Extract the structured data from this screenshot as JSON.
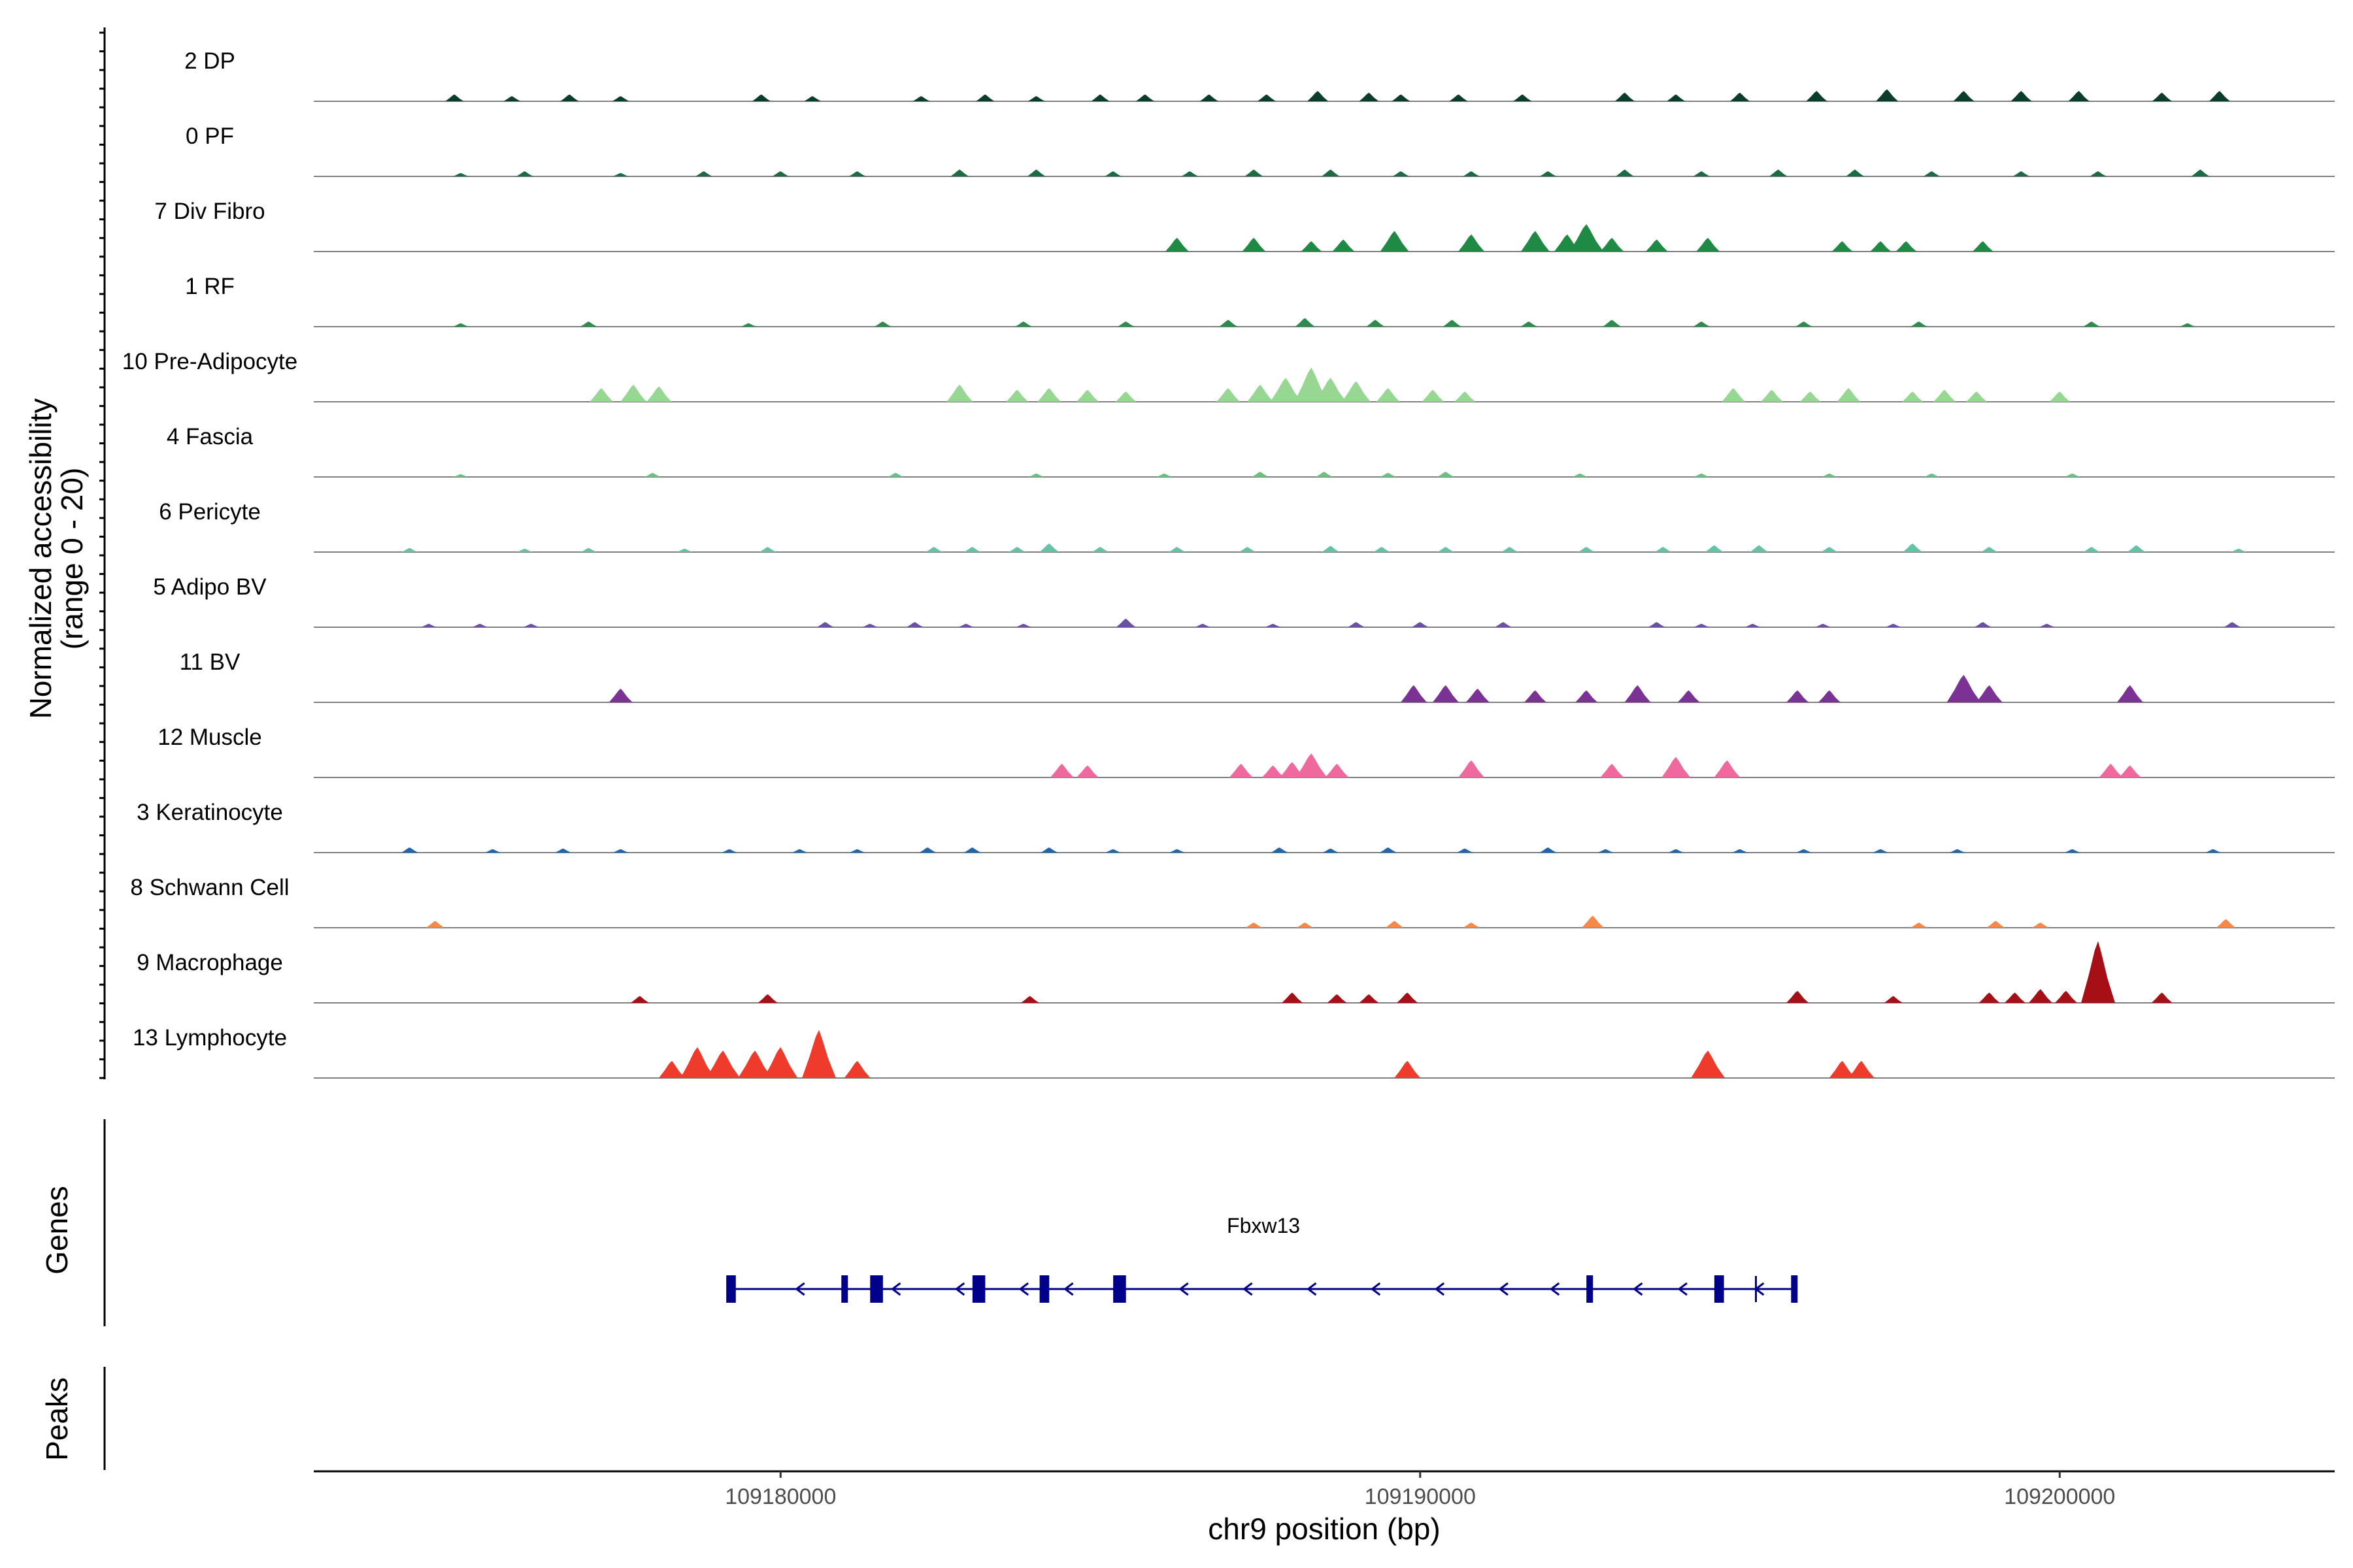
{
  "chart_data": {
    "type": "area",
    "title": "",
    "ylabel": "Normalized accessibility",
    "ylabel_range": "(range 0 - 20)",
    "xlabel": "chr9 position (bp)",
    "xlim": [
      109172700,
      109204300
    ],
    "ylim": [
      0,
      20
    ],
    "x_ticks": [
      {
        "value": 109180000,
        "label": "109180000"
      },
      {
        "value": 109190000,
        "label": "109190000"
      },
      {
        "value": 109200000,
        "label": "109200000"
      }
    ],
    "tracks": [
      {
        "name": "2 DP",
        "color": "#0b3d2a",
        "peaks": [
          [
            109174900,
            2
          ],
          [
            109175800,
            1.5
          ],
          [
            109176700,
            2
          ],
          [
            109177500,
            1.5
          ],
          [
            109179700,
            2
          ],
          [
            109180500,
            1.5
          ],
          [
            109182200,
            1.5
          ],
          [
            109183200,
            2
          ],
          [
            109184000,
            1.5
          ],
          [
            109185000,
            2
          ],
          [
            109185700,
            2
          ],
          [
            109186700,
            2
          ],
          [
            109187600,
            2
          ],
          [
            109188400,
            3
          ],
          [
            109189200,
            2.5
          ],
          [
            109189700,
            2
          ],
          [
            109190600,
            2
          ],
          [
            109191600,
            2
          ],
          [
            109193200,
            2.5
          ],
          [
            109194000,
            2
          ],
          [
            109195000,
            2.5
          ],
          [
            109196200,
            3
          ],
          [
            109197300,
            3.5
          ],
          [
            109198500,
            3
          ],
          [
            109199400,
            3
          ],
          [
            109200300,
            3
          ],
          [
            109201600,
            2.5
          ],
          [
            109202500,
            3
          ]
        ]
      },
      {
        "name": "0 PF",
        "color": "#1d6a45",
        "peaks": [
          [
            109175000,
            1
          ],
          [
            109176000,
            1.5
          ],
          [
            109177500,
            1
          ],
          [
            109178800,
            1.5
          ],
          [
            109180000,
            1.5
          ],
          [
            109181200,
            1.5
          ],
          [
            109182800,
            2
          ],
          [
            109184000,
            2
          ],
          [
            109185200,
            1.5
          ],
          [
            109186400,
            1.5
          ],
          [
            109187400,
            2
          ],
          [
            109188600,
            2
          ],
          [
            109189700,
            1.5
          ],
          [
            109190800,
            1.5
          ],
          [
            109192000,
            1.5
          ],
          [
            109193200,
            2
          ],
          [
            109194400,
            1.5
          ],
          [
            109195600,
            2
          ],
          [
            109196800,
            2
          ],
          [
            109198000,
            1.5
          ],
          [
            109199400,
            1.5
          ],
          [
            109200600,
            1.5
          ],
          [
            109202200,
            2
          ]
        ]
      },
      {
        "name": "7 Div Fibro",
        "color": "#1f8a43",
        "peaks": [
          [
            109186200,
            4
          ],
          [
            109187400,
            4
          ],
          [
            109188300,
            3
          ],
          [
            109188800,
            3.5
          ],
          [
            109189600,
            6
          ],
          [
            109190800,
            5
          ],
          [
            109191800,
            6
          ],
          [
            109192300,
            5
          ],
          [
            109192600,
            8
          ],
          [
            109193000,
            4
          ],
          [
            109193700,
            3.5
          ],
          [
            109194500,
            4
          ],
          [
            109196600,
            3
          ],
          [
            109197200,
            3
          ],
          [
            109197600,
            3
          ],
          [
            109198800,
            3
          ]
        ]
      },
      {
        "name": "1 RF",
        "color": "#2e8b4e",
        "peaks": [
          [
            109175000,
            1
          ],
          [
            109177000,
            1.5
          ],
          [
            109179500,
            1
          ],
          [
            109181600,
            1.5
          ],
          [
            109183800,
            1.5
          ],
          [
            109185400,
            1.5
          ],
          [
            109187000,
            2
          ],
          [
            109188200,
            2.5
          ],
          [
            109189300,
            2
          ],
          [
            109190500,
            2
          ],
          [
            109191700,
            1.5
          ],
          [
            109193000,
            2
          ],
          [
            109194400,
            1.5
          ],
          [
            109196000,
            1.5
          ],
          [
            109197800,
            1.5
          ],
          [
            109200500,
            1.5
          ],
          [
            109202000,
            1
          ]
        ]
      },
      {
        "name": "10 Pre-Adipocyte",
        "color": "#98d694",
        "peaks": [
          [
            109177200,
            4
          ],
          [
            109177700,
            5
          ],
          [
            109178100,
            4.5
          ],
          [
            109182800,
            5
          ],
          [
            109183700,
            3.5
          ],
          [
            109184200,
            4
          ],
          [
            109184800,
            3.5
          ],
          [
            109185400,
            3
          ],
          [
            109187000,
            4
          ],
          [
            109187500,
            5
          ],
          [
            109187900,
            7
          ],
          [
            109188300,
            10
          ],
          [
            109188600,
            7
          ],
          [
            109189000,
            6
          ],
          [
            109189500,
            4
          ],
          [
            109190200,
            3.5
          ],
          [
            109190700,
            3
          ],
          [
            109194900,
            4
          ],
          [
            109195500,
            3.5
          ],
          [
            109196100,
            3
          ],
          [
            109196700,
            4
          ],
          [
            109197700,
            3
          ],
          [
            109198200,
            3.5
          ],
          [
            109198700,
            3
          ],
          [
            109200000,
            3
          ]
        ]
      },
      {
        "name": "4 Fascia",
        "color": "#6fbf84",
        "peaks": [
          [
            109175000,
            0.8
          ],
          [
            109178000,
            1.2
          ],
          [
            109181800,
            1.2
          ],
          [
            109184000,
            1
          ],
          [
            109186000,
            1
          ],
          [
            109187500,
            1.5
          ],
          [
            109188500,
            1.5
          ],
          [
            109189500,
            1.2
          ],
          [
            109190400,
            1.5
          ],
          [
            109192500,
            1
          ],
          [
            109194400,
            1
          ],
          [
            109196400,
            1
          ],
          [
            109198000,
            1
          ],
          [
            109200200,
            1
          ]
        ]
      },
      {
        "name": "6 Pericyte",
        "color": "#66c2a5",
        "peaks": [
          [
            109174200,
            1.2
          ],
          [
            109176000,
            1
          ],
          [
            109177000,
            1.2
          ],
          [
            109178500,
            1
          ],
          [
            109179800,
            1.5
          ],
          [
            109182400,
            1.5
          ],
          [
            109183000,
            1.5
          ],
          [
            109183700,
            1.5
          ],
          [
            109184200,
            2.5
          ],
          [
            109185000,
            1.5
          ],
          [
            109186200,
            1.5
          ],
          [
            109187300,
            1.5
          ],
          [
            109188600,
            1.8
          ],
          [
            109189400,
            1.5
          ],
          [
            109190400,
            1.5
          ],
          [
            109191400,
            1.5
          ],
          [
            109192600,
            1.5
          ],
          [
            109193800,
            1.5
          ],
          [
            109194600,
            2
          ],
          [
            109195300,
            2
          ],
          [
            109196400,
            1.5
          ],
          [
            109197700,
            2.5
          ],
          [
            109198900,
            1.5
          ],
          [
            109200500,
            1.5
          ],
          [
            109201200,
            2
          ],
          [
            109202800,
            1
          ]
        ]
      },
      {
        "name": "5 Adipo BV",
        "color": "#6a51a3",
        "peaks": [
          [
            109174500,
            1
          ],
          [
            109175300,
            1
          ],
          [
            109176100,
            1
          ],
          [
            109180700,
            1.5
          ],
          [
            109181400,
            1
          ],
          [
            109182100,
            1.5
          ],
          [
            109182900,
            1
          ],
          [
            109183800,
            1
          ],
          [
            109185400,
            2.5
          ],
          [
            109186600,
            1
          ],
          [
            109187700,
            1
          ],
          [
            109189000,
            1.5
          ],
          [
            109190000,
            1.5
          ],
          [
            109191300,
            1.5
          ],
          [
            109193700,
            1.5
          ],
          [
            109194400,
            1
          ],
          [
            109195200,
            1
          ],
          [
            109196300,
            1
          ],
          [
            109197400,
            1
          ],
          [
            109198800,
            1.5
          ],
          [
            109199800,
            1
          ],
          [
            109202700,
            1.5
          ]
        ]
      },
      {
        "name": "11 BV",
        "color": "#7b3294",
        "peaks": [
          [
            109177500,
            4
          ],
          [
            109189900,
            5
          ],
          [
            109190400,
            5
          ],
          [
            109190900,
            4
          ],
          [
            109191800,
            3.5
          ],
          [
            109192600,
            3.5
          ],
          [
            109193400,
            5
          ],
          [
            109194200,
            3.5
          ],
          [
            109195900,
            3.5
          ],
          [
            109196400,
            3.5
          ],
          [
            109198500,
            8
          ],
          [
            109198900,
            5
          ],
          [
            109201100,
            5
          ]
        ]
      },
      {
        "name": "12 Muscle",
        "color": "#f0699e",
        "peaks": [
          [
            109184400,
            4
          ],
          [
            109184800,
            3.5
          ],
          [
            109187200,
            4
          ],
          [
            109187700,
            3.5
          ],
          [
            109188000,
            4.5
          ],
          [
            109188300,
            7
          ],
          [
            109188700,
            4
          ],
          [
            109190800,
            5
          ],
          [
            109193000,
            4
          ],
          [
            109194000,
            6
          ],
          [
            109194800,
            5
          ],
          [
            109200800,
            4
          ],
          [
            109201100,
            3.5
          ]
        ]
      },
      {
        "name": "3 Keratinocyte",
        "color": "#2166ac",
        "peaks": [
          [
            109174200,
            1.5
          ],
          [
            109175500,
            1
          ],
          [
            109176600,
            1.2
          ],
          [
            109177500,
            1
          ],
          [
            109179200,
            1
          ],
          [
            109180300,
            1
          ],
          [
            109181200,
            1
          ],
          [
            109182300,
            1.5
          ],
          [
            109183000,
            1.5
          ],
          [
            109184200,
            1.5
          ],
          [
            109185200,
            1
          ],
          [
            109186200,
            1
          ],
          [
            109187800,
            1.5
          ],
          [
            109188600,
            1.2
          ],
          [
            109189500,
            1.5
          ],
          [
            109190700,
            1.2
          ],
          [
            109192000,
            1.5
          ],
          [
            109192900,
            1
          ],
          [
            109194000,
            1
          ],
          [
            109195000,
            1
          ],
          [
            109196000,
            1
          ],
          [
            109197200,
            1
          ],
          [
            109198400,
            1
          ],
          [
            109200200,
            1
          ],
          [
            109202400,
            1
          ]
        ]
      },
      {
        "name": "8 Schwann Cell",
        "color": "#f4894a",
        "peaks": [
          [
            109174600,
            2
          ],
          [
            109187400,
            1.5
          ],
          [
            109188200,
            1.5
          ],
          [
            109189600,
            2
          ],
          [
            109190800,
            1.5
          ],
          [
            109192700,
            3.5
          ],
          [
            109197800,
            1.5
          ],
          [
            109199000,
            2
          ],
          [
            109199700,
            1.5
          ],
          [
            109202600,
            2.5
          ]
        ]
      },
      {
        "name": "9 Macrophage",
        "color": "#a50f15",
        "peaks": [
          [
            109177800,
            2
          ],
          [
            109179800,
            2.5
          ],
          [
            109183900,
            2
          ],
          [
            109188000,
            3
          ],
          [
            109188700,
            2.5
          ],
          [
            109189200,
            2.5
          ],
          [
            109189800,
            3
          ],
          [
            109195900,
            3.5
          ],
          [
            109197400,
            2
          ],
          [
            109198900,
            3
          ],
          [
            109199300,
            3
          ],
          [
            109199700,
            4
          ],
          [
            109200100,
            3.5
          ],
          [
            109200600,
            18
          ],
          [
            109201600,
            3
          ]
        ]
      },
      {
        "name": "13 Lymphocyte",
        "color": "#ef3b2c",
        "peaks": [
          [
            109178300,
            5
          ],
          [
            109178700,
            9
          ],
          [
            109179100,
            8
          ],
          [
            109179600,
            8
          ],
          [
            109180000,
            9
          ],
          [
            109180600,
            14
          ],
          [
            109181200,
            5
          ],
          [
            109189800,
            5
          ],
          [
            109194500,
            8
          ],
          [
            109196600,
            5
          ],
          [
            109196900,
            5
          ]
        ]
      }
    ],
    "gene_track": {
      "label": "Genes",
      "gene_name": "Fbxw13",
      "color": "#00008b",
      "start": 109179200,
      "end": 109195900,
      "strand": "-",
      "exons": [
        [
          109179150,
          109179300
        ],
        [
          109180950,
          109181050
        ],
        [
          109181400,
          109181600
        ],
        [
          109183000,
          109183200
        ],
        [
          109184050,
          109184200
        ],
        [
          109185200,
          109185400
        ],
        [
          109192600,
          109192700
        ],
        [
          109194600,
          109194750
        ],
        [
          109195800,
          109195900
        ]
      ],
      "strand_arrows": [
        109180300,
        109181800,
        109182800,
        109183800,
        109184500,
        109186300,
        109187300,
        109188300,
        109189300,
        109190300,
        109191300,
        109192100,
        109193400,
        109194100,
        109195300
      ]
    },
    "peaks_track": {
      "label": "Peaks",
      "regions": []
    }
  }
}
